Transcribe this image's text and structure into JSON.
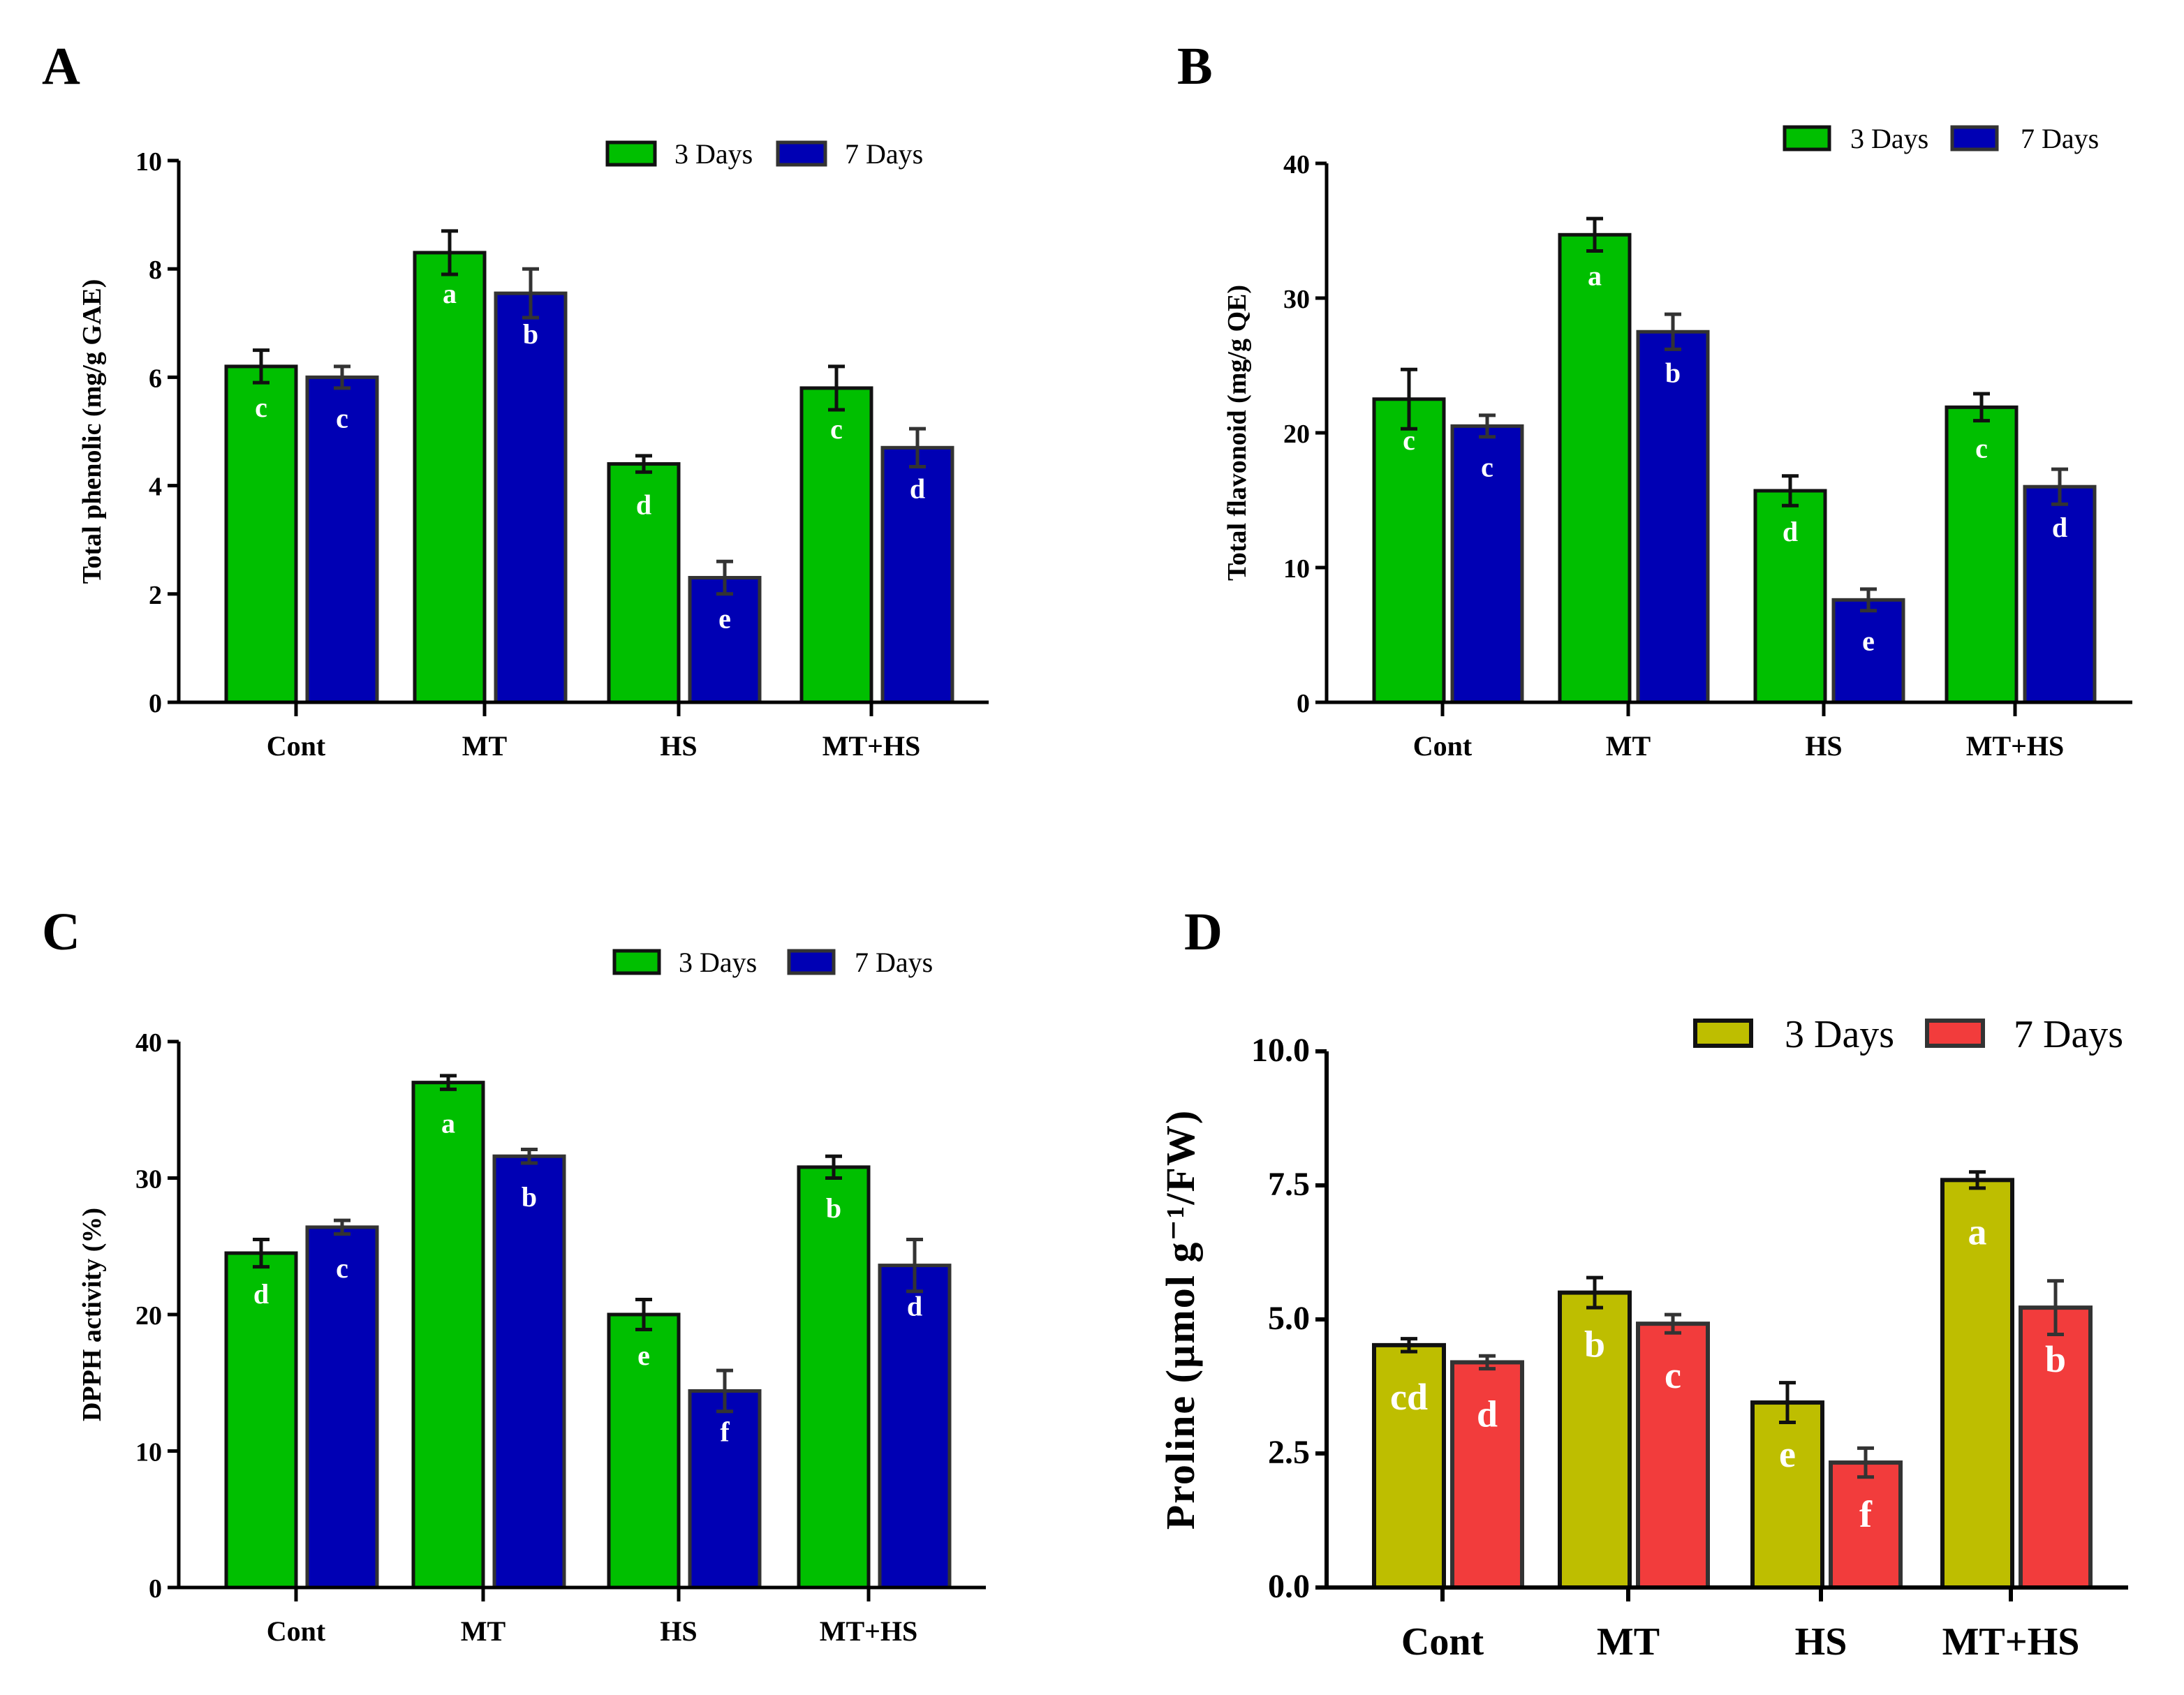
{
  "chart_data": [
    {
      "panel": "A",
      "type": "bar",
      "ylabel": "Total phenolic (mg/g GAE)",
      "ylim": [
        0,
        10
      ],
      "yticks": [
        "0",
        "2",
        "4",
        "6",
        "8",
        "10"
      ],
      "ytick_values": [
        0,
        2,
        4,
        6,
        8,
        10
      ],
      "categories": [
        "Cont",
        "MT",
        "HS",
        "MT+HS"
      ],
      "legend_position": "top-right",
      "series": [
        {
          "name": "3 Days",
          "color": "#00bf00",
          "values": [
            6.2,
            8.3,
            4.4,
            5.8
          ],
          "errors": [
            0.3,
            0.4,
            0.15,
            0.4
          ],
          "letters": [
            "c",
            "a",
            "d",
            "c"
          ]
        },
        {
          "name": "7 Days",
          "color": "#0000b4",
          "values": [
            6.0,
            7.55,
            2.3,
            4.7
          ],
          "errors": [
            0.2,
            0.45,
            0.3,
            0.35
          ],
          "letters": [
            "c",
            "b",
            "e",
            "d"
          ]
        }
      ]
    },
    {
      "panel": "B",
      "type": "bar",
      "ylabel": "Total flavonoid (mg/g QE)",
      "ylim": [
        0,
        40
      ],
      "yticks": [
        "0",
        "10",
        "20",
        "30",
        "40"
      ],
      "ytick_values": [
        0,
        10,
        20,
        30,
        40
      ],
      "categories": [
        "Cont",
        "MT",
        "HS",
        "MT+HS"
      ],
      "legend_position": "top-right",
      "series": [
        {
          "name": "3 Days",
          "color": "#00bf00",
          "values": [
            22.5,
            34.7,
            15.7,
            21.9
          ],
          "errors": [
            2.2,
            1.2,
            1.1,
            1.0
          ],
          "letters": [
            "c",
            "a",
            "d",
            "c"
          ]
        },
        {
          "name": "7 Days",
          "color": "#0000b4",
          "values": [
            20.5,
            27.5,
            7.6,
            16.0
          ],
          "errors": [
            0.8,
            1.3,
            0.8,
            1.3
          ],
          "letters": [
            "c",
            "b",
            "e",
            "d"
          ]
        }
      ]
    },
    {
      "panel": "C",
      "type": "bar",
      "ylabel": "DPPH activity (%)",
      "ylim": [
        0,
        40
      ],
      "yticks": [
        "0",
        "10",
        "20",
        "30",
        "40"
      ],
      "ytick_values": [
        0,
        10,
        20,
        30,
        40
      ],
      "categories": [
        "Cont",
        "MT",
        "HS",
        "MT+HS"
      ],
      "legend_position": "top-right",
      "series": [
        {
          "name": "3 Days",
          "color": "#00bf00",
          "values": [
            24.5,
            37.0,
            20.0,
            30.8
          ],
          "errors": [
            1.0,
            0.5,
            1.1,
            0.8
          ],
          "letters": [
            "d",
            "a",
            "e",
            "b"
          ]
        },
        {
          "name": "7 Days",
          "color": "#0000b4",
          "values": [
            26.4,
            31.6,
            14.4,
            23.6
          ],
          "errors": [
            0.5,
            0.5,
            1.5,
            1.9
          ],
          "letters": [
            "c",
            "b",
            "f",
            "d"
          ]
        }
      ]
    },
    {
      "panel": "D",
      "type": "bar",
      "ylabel": "Proline (µmol g⁻¹/FW)",
      "ylim": [
        0,
        10
      ],
      "yticks": [
        "0.0",
        "2.5",
        "5.0",
        "7.5",
        "10.0"
      ],
      "ytick_values": [
        0,
        2.5,
        5,
        7.5,
        10
      ],
      "categories": [
        "Cont",
        "MT",
        "HS",
        "MT+HS"
      ],
      "legend_position": "top-right",
      "series": [
        {
          "name": "3 Days",
          "color": "#bebe00",
          "values": [
            4.52,
            5.5,
            3.45,
            7.6
          ],
          "errors": [
            0.12,
            0.28,
            0.37,
            0.15
          ],
          "letters": [
            "cd",
            "b",
            "e",
            "a"
          ]
        },
        {
          "name": "7 Days",
          "color": "#f23c3c",
          "values": [
            4.2,
            4.92,
            2.33,
            5.22
          ],
          "errors": [
            0.12,
            0.17,
            0.27,
            0.5
          ],
          "letters": [
            "d",
            "c",
            "f",
            "b"
          ]
        }
      ]
    }
  ]
}
